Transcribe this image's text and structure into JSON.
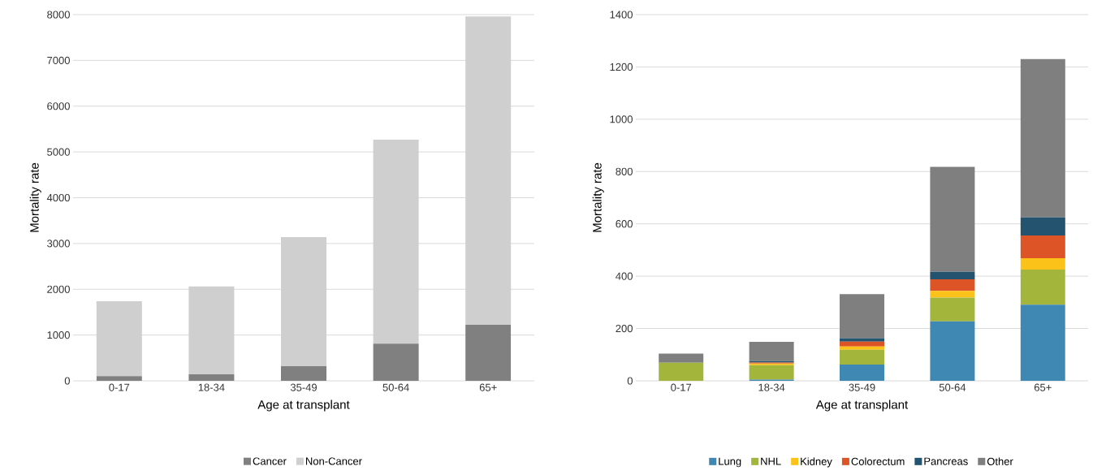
{
  "chart_data": [
    {
      "type": "bar",
      "stacked": true,
      "xlabel": "Age at transplant",
      "ylabel": "Mortality rate",
      "categories": [
        "0-17",
        "18-34",
        "35-49",
        "50-64",
        "65+"
      ],
      "series": [
        {
          "name": "Cancer",
          "color": "#808080",
          "values": [
            100,
            140,
            320,
            810,
            1230
          ]
        },
        {
          "name": "Non-Cancer",
          "color": "#d0cfd0",
          "values": [
            1640,
            1920,
            2820,
            4460,
            6730
          ]
        }
      ],
      "ylim": [
        0,
        8000
      ],
      "yticks": [
        0,
        1000,
        2000,
        3000,
        4000,
        5000,
        6000,
        7000,
        8000
      ],
      "grid": "y",
      "legend": "bottom"
    },
    {
      "type": "bar",
      "stacked": true,
      "xlabel": "Age at transplant",
      "ylabel": "Mortality rate",
      "categories": [
        "0-17",
        "18-34",
        "35-49",
        "50-64",
        "65+"
      ],
      "series": [
        {
          "name": "Lung",
          "color": "#3f88b4",
          "values": [
            null,
            5,
            62,
            227,
            291
          ]
        },
        {
          "name": "NHL",
          "color": "#a4b53b",
          "values": [
            69,
            55,
            57,
            91,
            134
          ]
        },
        {
          "name": "Kidney",
          "color": "#fbc31a",
          "values": [
            0,
            6,
            12,
            26,
            44
          ]
        },
        {
          "name": "Colorectum",
          "color": "#dd5426",
          "values": [
            null,
            4,
            19,
            44,
            87
          ]
        },
        {
          "name": "Pancreas",
          "color": "#245370",
          "values": [
            0,
            5,
            13,
            29,
            69
          ]
        },
        {
          "name": "Other",
          "color": "#7f7f7f",
          "values": [
            35,
            74,
            168,
            401,
            605
          ]
        }
      ],
      "ylim": [
        0,
        1400
      ],
      "yticks": [
        0,
        200,
        400,
        600,
        800,
        1000,
        1200,
        1400
      ],
      "grid": "y",
      "legend": "bottom"
    }
  ]
}
